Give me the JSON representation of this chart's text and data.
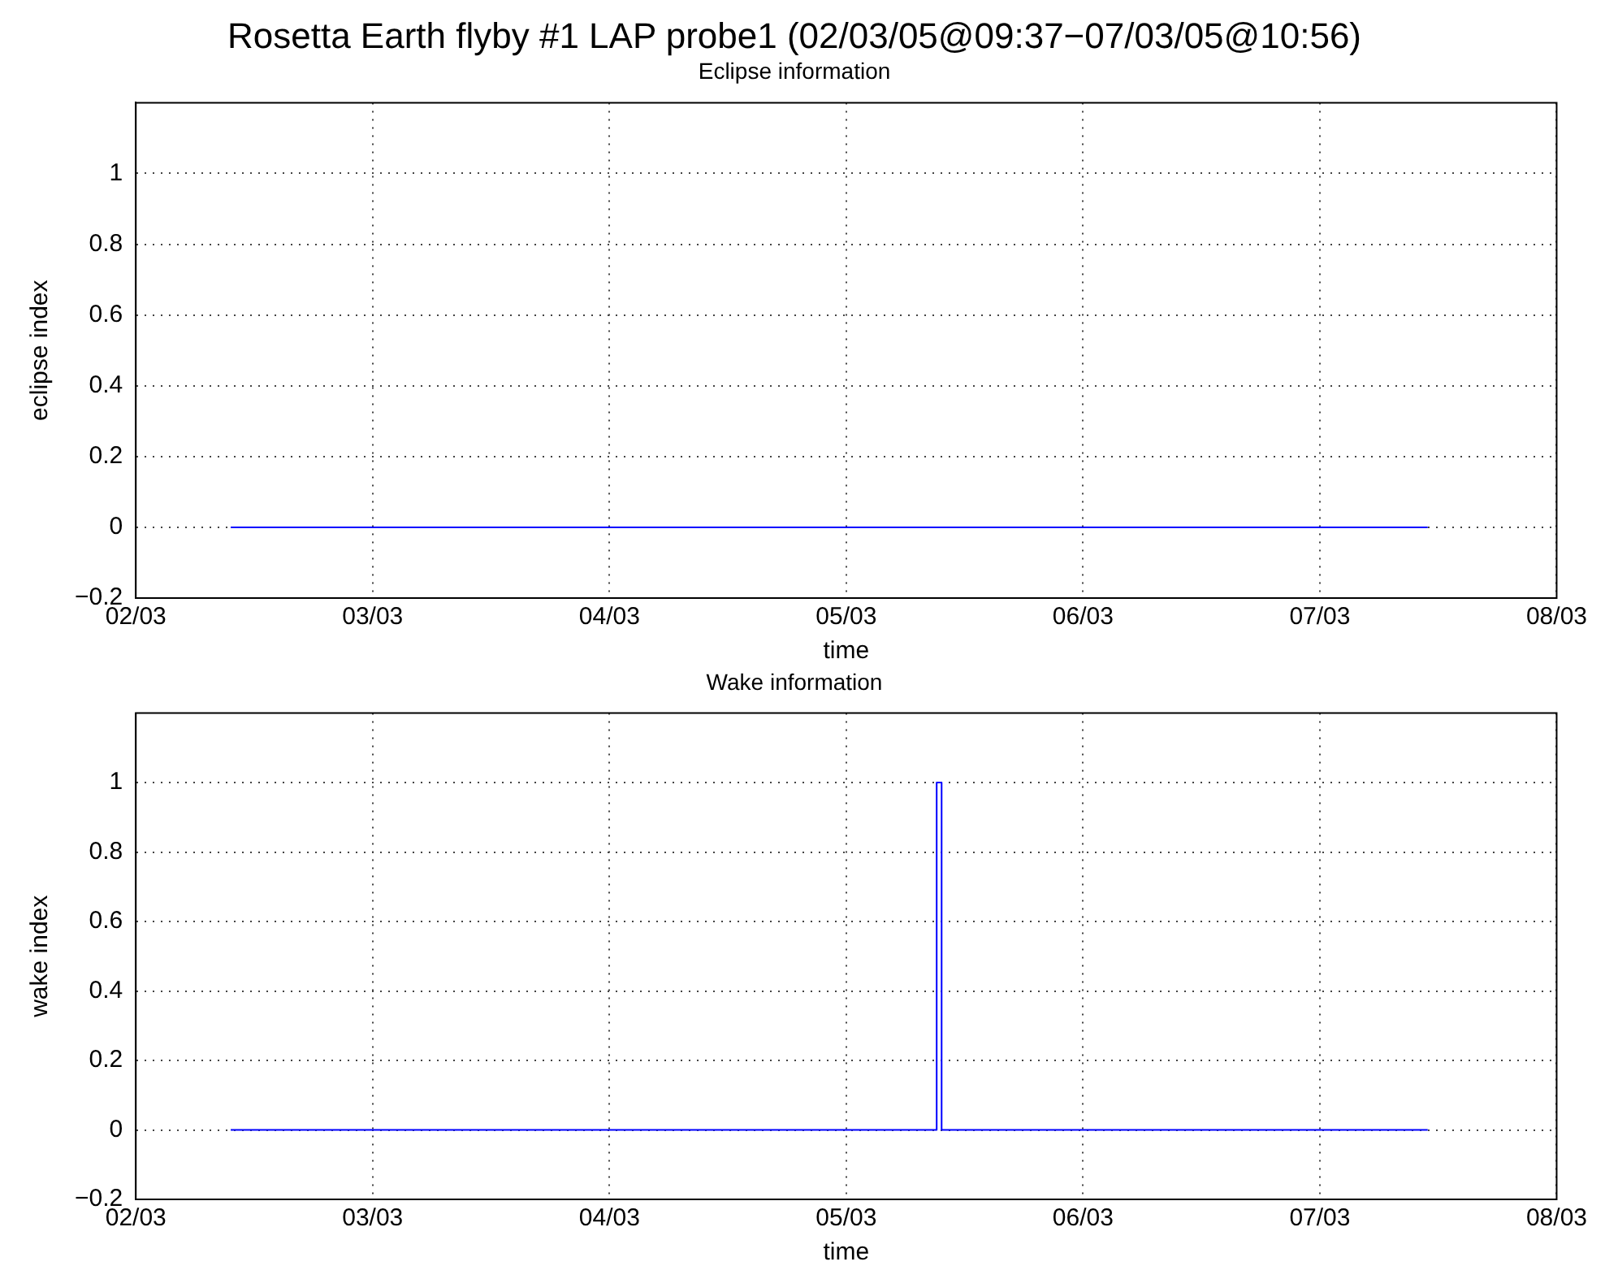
{
  "chart_data": [
    {
      "type": "line",
      "title": "Rosetta Earth flyby #1 LAP probe1 (02/03/05@09:37−07/03/05@10:56)",
      "subtitle": "Eclipse information",
      "xlabel": "time",
      "ylabel": "eclipse index",
      "series": [
        {
          "color": "#0000ff",
          "x": [
            "--03-02T09:37",
            "--03-07T10:56"
          ],
          "values": [
            0,
            0
          ]
        }
      ],
      "xlim": [
        "--03-02",
        "--03-08"
      ],
      "xticks": [
        {
          "value": "--03-02",
          "label": "02/03"
        },
        {
          "value": "--03-03",
          "label": "03/03"
        },
        {
          "value": "--03-04",
          "label": "04/03"
        },
        {
          "value": "--03-05",
          "label": "05/03"
        },
        {
          "value": "--03-06",
          "label": "06/03"
        },
        {
          "value": "--03-07",
          "label": "07/03"
        },
        {
          "value": "--03-08",
          "label": "08/03"
        }
      ],
      "ylim": [
        -0.2,
        1.2
      ],
      "yticks": [
        {
          "value": -0.2,
          "label": "−0.2"
        },
        0,
        0.2,
        0.4,
        0.6,
        0.8,
        1
      ],
      "grid": true,
      "legend": false,
      "marker": "none",
      "line_style": "solid"
    },
    {
      "type": "line",
      "title": "Wake information",
      "xlabel": "time",
      "ylabel": "wake index",
      "series": [
        {
          "color": "#0000ff",
          "x": [
            "--03-02T09:37",
            "--03-05T09:10",
            "--03-05T09:10",
            "--03-05T09:40",
            "--03-05T09:40",
            "--03-07T10:56"
          ],
          "values": [
            0,
            0,
            1,
            1,
            0,
            0
          ]
        }
      ],
      "xlim": [
        "--03-02",
        "--03-08"
      ],
      "xticks": [
        {
          "value": "--03-02",
          "label": "02/03"
        },
        {
          "value": "--03-03",
          "label": "03/03"
        },
        {
          "value": "--03-04",
          "label": "04/03"
        },
        {
          "value": "--03-05",
          "label": "05/03"
        },
        {
          "value": "--03-06",
          "label": "06/03"
        },
        {
          "value": "--03-07",
          "label": "07/03"
        },
        {
          "value": "--03-08",
          "label": "08/03"
        }
      ],
      "ylim": [
        -0.2,
        1.2
      ],
      "yticks": [
        {
          "value": -0.2,
          "label": "−0.2"
        },
        0,
        0.2,
        0.4,
        0.6,
        0.8,
        1
      ],
      "grid": true,
      "legend": false,
      "marker": "none",
      "line_style": "solid"
    }
  ]
}
